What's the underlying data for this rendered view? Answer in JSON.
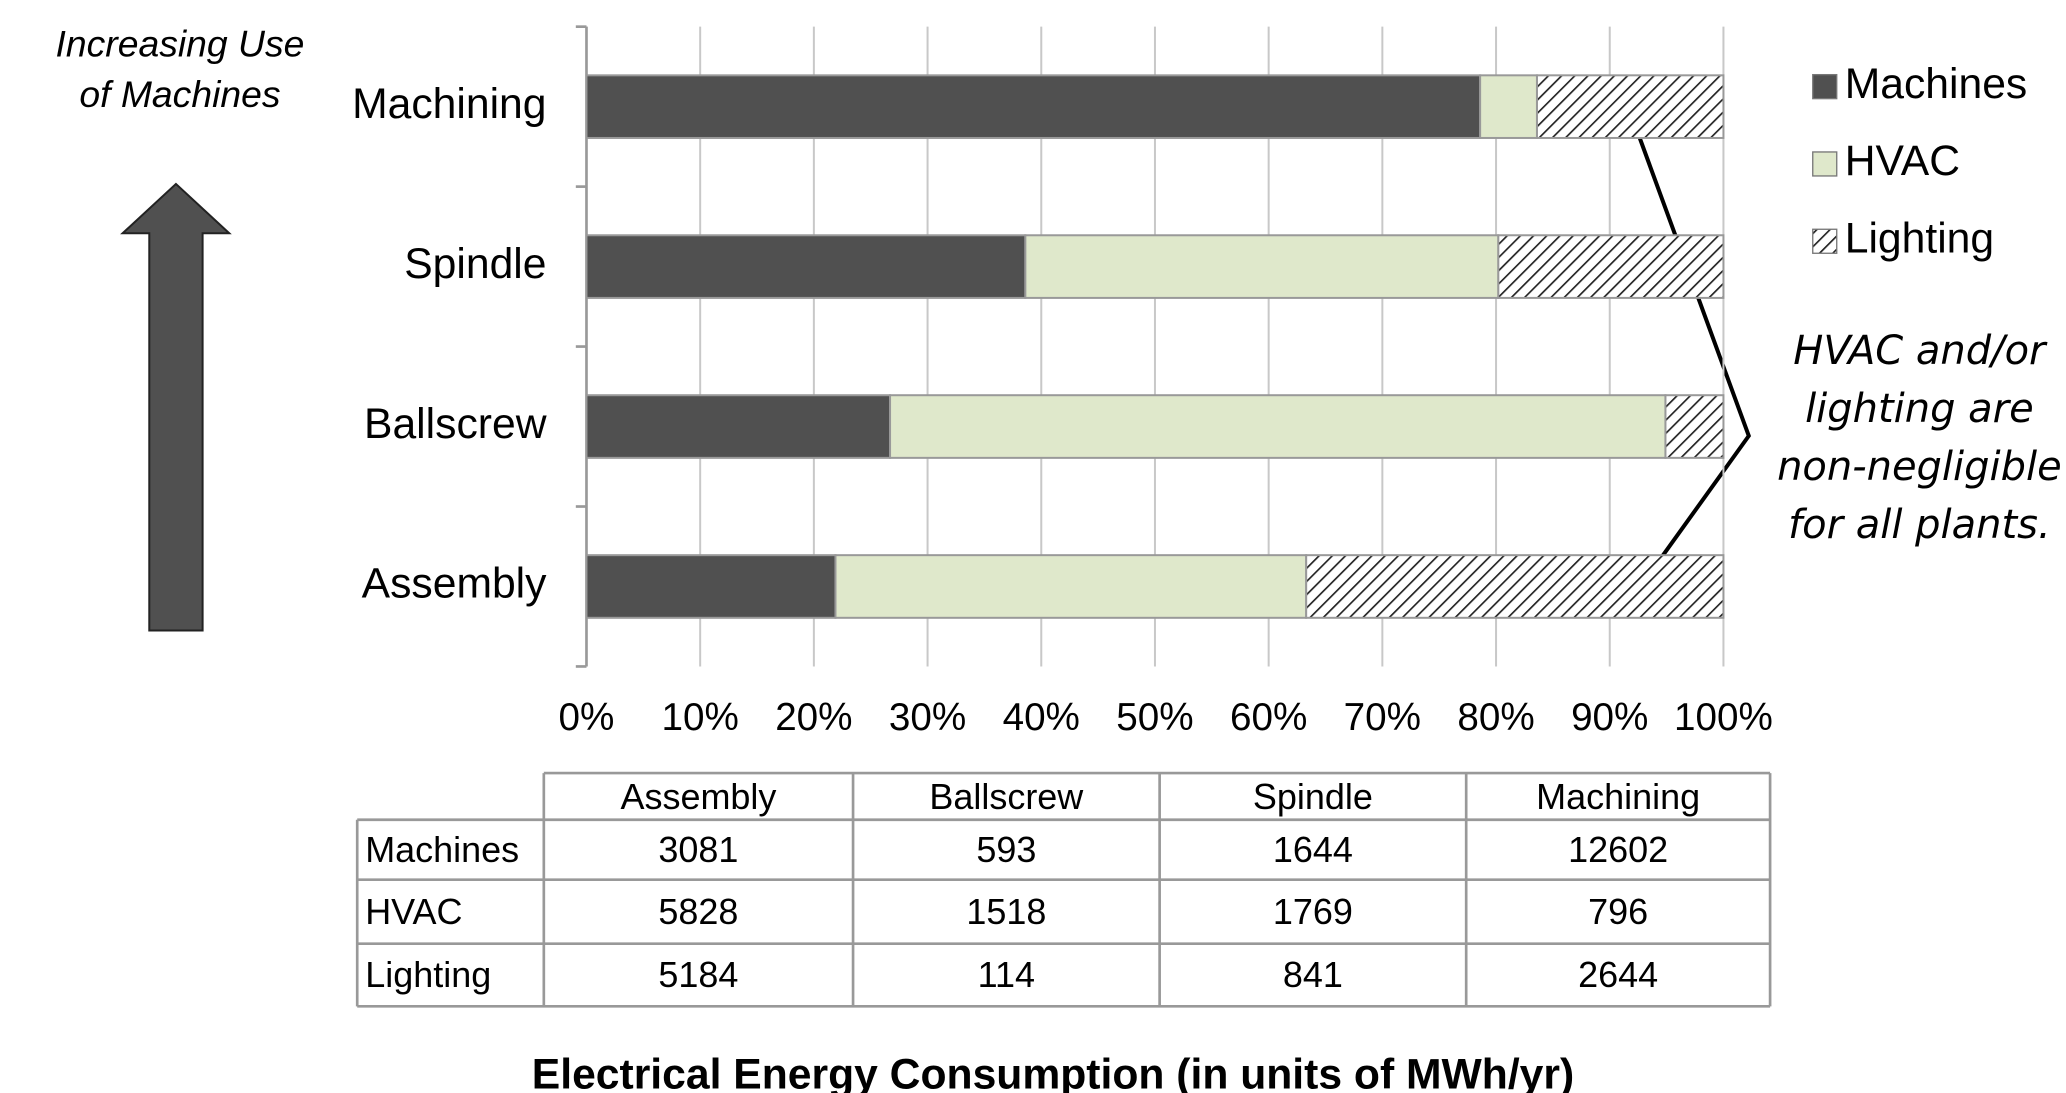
{
  "chart_data": {
    "type": "bar",
    "orientation": "horizontal",
    "stacked": true,
    "title": "Electrical Energy Consumption (in units of MWh/yr)",
    "categories": [
      "Assembly",
      "Ballscrew",
      "Spindle",
      "Machining"
    ],
    "series": [
      {
        "name": "Machines",
        "color": "#505050",
        "values": [
          21.9,
          26.7,
          38.6,
          78.6
        ]
      },
      {
        "name": "HVAC",
        "color": "#dfe8cb",
        "values": [
          41.4,
          68.2,
          41.6,
          5.0
        ]
      },
      {
        "name": "Lighting",
        "color": "#ffffff",
        "pattern": "hatch",
        "values": [
          36.7,
          5.1,
          19.8,
          16.4
        ]
      }
    ],
    "xlim": [
      0,
      100
    ],
    "xticks": [
      {
        "value": 0,
        "label": "0%"
      },
      {
        "value": 10,
        "label": "10%"
      },
      {
        "value": 20,
        "label": "20%"
      },
      {
        "value": 30,
        "label": "30%"
      },
      {
        "value": 40,
        "label": "40%"
      },
      {
        "value": 50,
        "label": "50%"
      },
      {
        "value": 60,
        "label": "60%"
      },
      {
        "value": 70,
        "label": "70%"
      },
      {
        "value": 80,
        "label": "80%"
      },
      {
        "value": 90,
        "label": "90%"
      },
      {
        "value": 100,
        "label": "100%"
      }
    ],
    "grid": true,
    "legend": "right",
    "side_label": [
      "Increasing Use",
      "of Machines"
    ],
    "annotation": [
      "HVAC and/or",
      "lighting are",
      "non-negligible",
      "for all plants."
    ],
    "table": {
      "columns": [
        "Assembly",
        "Ballscrew",
        "Spindle",
        "Machining"
      ],
      "rows": [
        {
          "label": "Machines",
          "values": [
            "3081",
            "593",
            "1644",
            "12602"
          ]
        },
        {
          "label": "HVAC",
          "values": [
            "5828",
            "1518",
            "1769",
            "796"
          ]
        },
        {
          "label": "Lighting",
          "values": [
            "5184",
            "114",
            "841",
            "2644"
          ]
        }
      ]
    }
  }
}
